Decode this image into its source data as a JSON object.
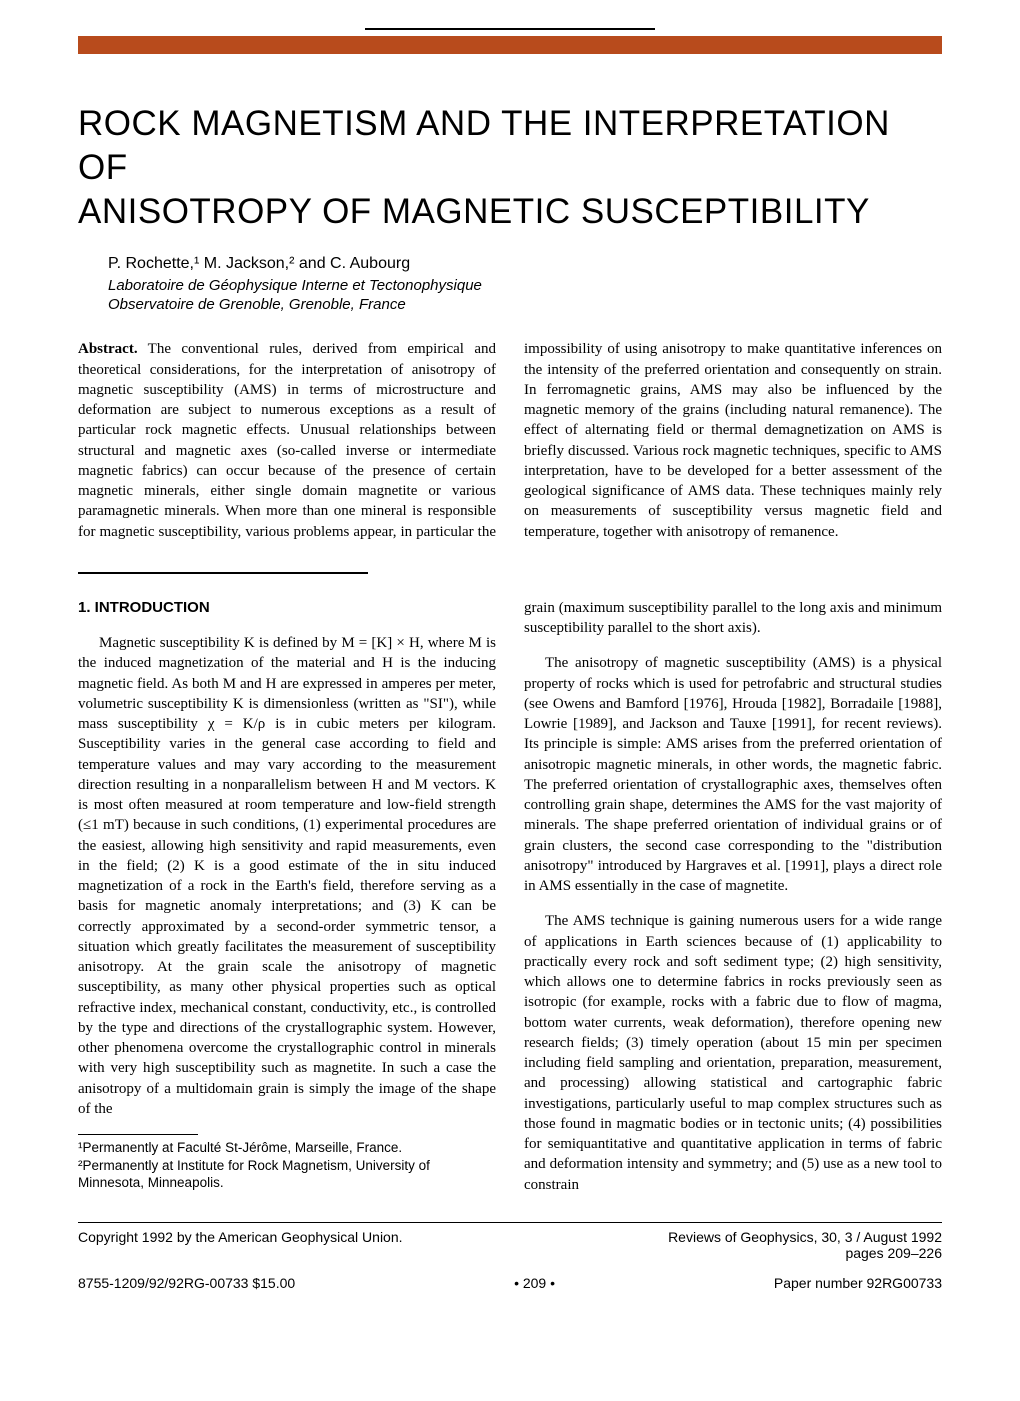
{
  "colors": {
    "bar": "#b84b1c",
    "text": "#000000",
    "background": "#ffffff"
  },
  "title_line1": "ROCK MAGNETISM AND THE INTERPRETATION OF",
  "title_line2": "ANISOTROPY OF MAGNETIC SUSCEPTIBILITY",
  "authors": "P. Rochette,¹ M. Jackson,² and C. Aubourg",
  "affiliation1": "Laboratoire de Géophysique Interne et Tectonophysique",
  "affiliation2": "Observatoire de Grenoble, Grenoble, France",
  "abstract_label": "Abstract.",
  "abstract_text": " The conventional rules, derived from empirical and theoretical considerations, for the interpretation of anisotropy of magnetic susceptibility (AMS) in terms of microstructure and deformation are subject to numerous exceptions as a result of particular rock magnetic effects. Unusual relationships between structural and magnetic axes (so-called inverse or intermediate magnetic fabrics) can occur because of the presence of certain magnetic minerals, either single domain magnetite or various paramagnetic minerals. When more than one mineral is responsible for magnetic susceptibility, various problems appear, in particular the impossibility of using anisotropy to make quantitative inferences on the intensity of the preferred orientation and consequently on strain. In ferromagnetic grains, AMS may also be influenced by the magnetic memory of the grains (including natural remanence). The effect of alternating field or thermal demagnetization on AMS is briefly discussed. Various rock magnetic techniques, specific to AMS interpretation, have to be developed for a better assessment of the geological significance of AMS data. These techniques mainly rely on measurements of susceptibility versus magnetic field and temperature, together with anisotropy of remanence.",
  "section1_head": "1. INTRODUCTION",
  "intro_para1": "Magnetic susceptibility K is defined by M = [K] × H, where M is the induced magnetization of the material and H is the inducing magnetic field. As both M and H are expressed in amperes per meter, volumetric susceptibility K is dimensionless (written as \"SI\"), while mass susceptibility χ = K/ρ is in cubic meters per kilogram. Susceptibility varies in the general case according to field and temperature values and may vary according to the measurement direction resulting in a nonparallelism between H and M vectors. K is most often measured at room temperature and low-field strength (≤1 mT) because in such conditions, (1) experimental procedures are the easiest, allowing high sensitivity and rapid measurements, even in the field; (2) K is a good estimate of the in situ induced magnetization of a rock in the Earth's field, therefore serving as a basis for magnetic anomaly interpretations; and (3) K can be correctly approximated by a second-order symmetric tensor, a situation which greatly facilitates the measurement of susceptibility anisotropy. At the grain scale the anisotropy of magnetic susceptibility, as many other physical properties such as optical refractive index, mechanical constant, conductivity, etc., is controlled by the type and directions of the crystallographic system. However, other phenomena overcome the crystallographic control in minerals with very high susceptibility such as magnetite. In such a case the anisotropy of a multidomain grain is simply the image of the shape of the",
  "footnote1": "¹Permanently at Faculté St-Jérôme, Marseille, France.",
  "footnote2": "²Permanently at Institute for Rock Magnetism, University of Minnesota, Minneapolis.",
  "intro_para1b": "grain (maximum susceptibility parallel to the long axis and minimum susceptibility parallel to the short axis).",
  "intro_para2": "The anisotropy of magnetic susceptibility (AMS) is a physical property of rocks which is used for petrofabric and structural studies (see Owens and Bamford [1976], Hrouda [1982], Borradaile [1988], Lowrie [1989], and Jackson and Tauxe [1991], for recent reviews). Its principle is simple: AMS arises from the preferred orientation of anisotropic magnetic minerals, in other words, the magnetic fabric. The preferred orientation of crystallographic axes, themselves often controlling grain shape, determines the AMS for the vast majority of minerals. The shape preferred orientation of individual grains or of grain clusters, the second case corresponding to the \"distribution anisotropy\" introduced by Hargraves et al. [1991], plays a direct role in AMS essentially in the case of magnetite.",
  "intro_para3": "The AMS technique is gaining numerous users for a wide range of applications in Earth sciences because of (1) applicability to practically every rock and soft sediment type; (2) high sensitivity, which allows one to determine fabrics in rocks previously seen as isotropic (for example, rocks with a fabric due to flow of magma, bottom water currents, weak deformation), therefore opening new research fields; (3) timely operation (about 15 min per specimen including field sampling and orientation, preparation, measurement, and processing) allowing statistical and cartographic fabric investigations, particularly useful to map complex structures such as those found in magmatic bodies or in tectonic units; (4) possibilities for semiquantitative and quantitative application in terms of fabric and deformation intensity and symmetry; and (5) use as a new tool to constrain",
  "copyright": "Copyright 1992 by the American Geophysical Union.",
  "journal_line1": "Reviews of Geophysics, 30, 3 / August 1992",
  "journal_line2": "pages 209–226",
  "issn_price": "8755-1209/92/92RG-00733 $15.00",
  "page_number": "• 209 •",
  "paper_number": "Paper number 92RG00733"
}
